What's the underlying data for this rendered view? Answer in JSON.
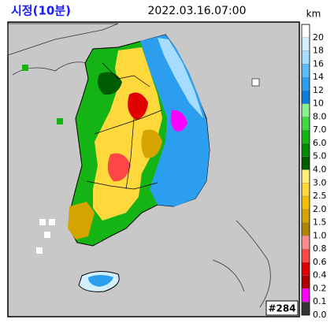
{
  "header": {
    "title": "시정(10분)",
    "datetime": "2022.03.16.07:00",
    "unit": "km"
  },
  "legend": {
    "levels": [
      {
        "label": "20",
        "color": "#ffffff"
      },
      {
        "label": "18",
        "color": "#d2f0ff"
      },
      {
        "label": "16",
        "color": "#a6dcff"
      },
      {
        "label": "14",
        "color": "#5cbcf8"
      },
      {
        "label": "12",
        "color": "#2c9ef0"
      },
      {
        "label": "10",
        "color": "#0a7fdc"
      },
      {
        "label": "8.0",
        "color": "#8cf08c"
      },
      {
        "label": "7.0",
        "color": "#44d844"
      },
      {
        "label": "6.0",
        "color": "#14b414"
      },
      {
        "label": "5.0",
        "color": "#008a00"
      },
      {
        "label": "4.0",
        "color": "#005c00"
      },
      {
        "label": "3.0",
        "color": "#fff07a"
      },
      {
        "label": "2.5",
        "color": "#ffd83c"
      },
      {
        "label": "2.0",
        "color": "#f0c000"
      },
      {
        "label": "1.5",
        "color": "#d4a400"
      },
      {
        "label": "1.0",
        "color": "#b08400"
      },
      {
        "label": "0.8",
        "color": "#ff8c8c"
      },
      {
        "label": "0.6",
        "color": "#ff4646"
      },
      {
        "label": "0.4",
        "color": "#e00000"
      },
      {
        "label": "0.2",
        "color": "#b00000"
      },
      {
        "label": "0.1",
        "color": "#ff00ff"
      },
      {
        "label": "0.0",
        "color": "#333333"
      }
    ]
  },
  "badge": "#284"
}
